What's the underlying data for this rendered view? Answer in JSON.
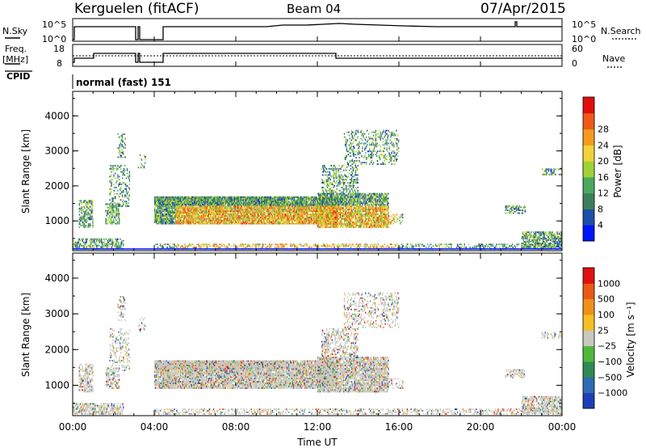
{
  "header": {
    "station": "Kerguelen (fitACF)",
    "beam": "Beam 04",
    "date": "07/Apr/2015"
  },
  "status_panels": {
    "nsky_label": "N.Sky",
    "nsearch_label": "N.Search",
    "freq_label_line1": "Freq.",
    "freq_label_line2": "[MHz]",
    "nave_label": "Nave",
    "cpid_label": "CPID",
    "cpid_value": "normal (fast) 151",
    "nsky_ticks": [
      "10^5",
      "10^0"
    ],
    "nsearch_ticks": [
      "10^5",
      "10^0"
    ],
    "freq_ticks": [
      "18",
      "8"
    ],
    "nave_ticks": [
      "60",
      "0"
    ]
  },
  "chart_data": [
    {
      "type": "heatmap",
      "name": "power",
      "ylabel": "Slant Range [km]",
      "yticks": [
        "1000",
        "2000",
        "3000",
        "4000"
      ],
      "ylim": [
        150,
        4700
      ],
      "colorbar_label": "Power [dB]",
      "colorbar_ticks": [
        "4",
        "8",
        "12",
        "16",
        "20",
        "24",
        "28"
      ],
      "colors": [
        "#0014ff",
        "#1f4fa8",
        "#3d7f5a",
        "#4aa85f",
        "#9fd23a",
        "#f2d23a",
        "#f59b1f",
        "#f05a18",
        "#e10e0e"
      ]
    },
    {
      "type": "heatmap",
      "name": "velocity",
      "ylabel": "Slant Range [km]",
      "yticks": [
        "1000",
        "2000",
        "3000",
        "4000"
      ],
      "ylim": [
        150,
        4700
      ],
      "colorbar_label": "Velocity [m s⁻¹]",
      "colorbar_ticks": [
        "1000",
        "500",
        "100",
        "25",
        "−25",
        "−100",
        "−500",
        "−1000"
      ],
      "colors": [
        "#1f3fb5",
        "#2f6bb0",
        "#2f8a55",
        "#4fb83a",
        "#c8c8c0",
        "#f5c023",
        "#f0901c",
        "#ea5a16",
        "#e01010"
      ]
    }
  ],
  "time_axis": {
    "xlabel": "Time UT",
    "ticks": [
      "00:00",
      "04:00",
      "08:00",
      "12:00",
      "16:00",
      "20:00",
      "00:00"
    ]
  }
}
